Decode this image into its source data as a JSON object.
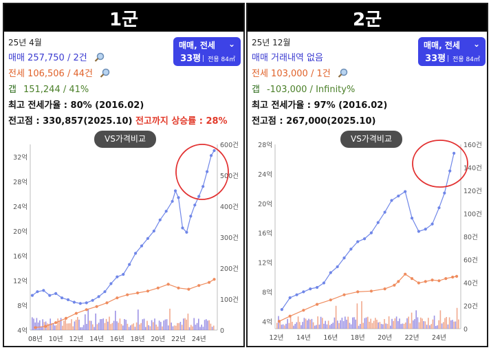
{
  "panels": [
    {
      "title": "1군",
      "period": "25년 4월",
      "trade": "매매 257,750 / 2건",
      "jeonse": "전세 106,506 / 44건",
      "gap_label": "갭",
      "gap_value": "151,244 / 41%",
      "max_ratio": "최고 전세가율 : 80% (2016.02)",
      "peak": "전고점 : 330,857(2025.10)",
      "rise": "전고까지 상승률 : 28%",
      "select_type": "매매, 전세",
      "select_size": "33평",
      "select_area": "전용 84㎡",
      "vs_button": "VS가격비교"
    },
    {
      "title": "2군",
      "period": "25년 12월",
      "trade": "매매 거래내역 없음",
      "jeonse": "전세 103,000 / 1건",
      "gap_label": "갭",
      "gap_value": "-103,000 / Infinity%",
      "max_ratio": "최고 전세가율 : 97% (2016.02)",
      "peak": "전고점 : 267,000(2025.10)",
      "rise": "",
      "select_type": "매매, 전세",
      "select_size": "33평",
      "select_area": "전용 84㎡",
      "vs_button": "VS가격비교"
    }
  ],
  "chart_data": [
    {
      "type": "line",
      "x_tick_labels": [
        "08년",
        "10년",
        "12년",
        "14년",
        "16년",
        "18년",
        "20년",
        "22년",
        "24년"
      ],
      "y_left_tick_labels": [
        "4억",
        "8억",
        "12억",
        "16억",
        "20억",
        "24억",
        "28억",
        "32억"
      ],
      "y_right_tick_labels": [
        "0",
        "100건",
        "200건",
        "300건",
        "400건",
        "500건",
        "600건"
      ],
      "ylim_left": [
        4,
        34
      ],
      "ylim_right": [
        0,
        600
      ],
      "xlim": [
        2007.5,
        2025.8
      ],
      "series": [
        {
          "color": "#6f86e8",
          "x": [
            2007.7,
            2008.2,
            2008.8,
            2009.4,
            2010.0,
            2010.6,
            2011.2,
            2011.8,
            2012.4,
            2013.0,
            2013.6,
            2014.2,
            2014.8,
            2015.4,
            2016.0,
            2016.6,
            2017.2,
            2017.8,
            2018.4,
            2019.0,
            2019.6,
            2020.2,
            2020.8,
            2021.4,
            2021.7,
            2022.0,
            2022.4,
            2022.8,
            2023.2,
            2023.6,
            2024.0,
            2024.4,
            2024.8,
            2025.2,
            2025.5
          ],
          "values": [
            9.6,
            10.2,
            10.4,
            9.6,
            9.9,
            9.2,
            8.9,
            8.5,
            8.3,
            8.4,
            8.8,
            9.4,
            10.2,
            11.5,
            12.6,
            13.0,
            14.6,
            16.4,
            17.6,
            18.8,
            20.0,
            21.8,
            23.2,
            24.8,
            26.5,
            25.4,
            20.5,
            19.8,
            22.4,
            24.2,
            25.6,
            27.2,
            29.6,
            32.2,
            33.0
          ]
        },
        {
          "color": "#ef8c5e",
          "x": [
            2008.0,
            2009.0,
            2010.0,
            2011.0,
            2012.0,
            2013.0,
            2014.0,
            2015.0,
            2016.0,
            2017.0,
            2018.0,
            2019.0,
            2020.0,
            2021.0,
            2022.0,
            2023.0,
            2024.0,
            2025.0,
            2025.5
          ],
          "values": [
            4.4,
            4.6,
            5.2,
            5.9,
            6.7,
            7.3,
            7.8,
            8.4,
            9.2,
            9.7,
            10.0,
            10.3,
            10.8,
            11.4,
            10.8,
            10.6,
            11.2,
            11.7,
            12.2
          ]
        }
      ]
    },
    {
      "type": "line",
      "x_tick_labels": [
        "12년",
        "14년",
        "16년",
        "18년",
        "20년",
        "22년",
        "24년"
      ],
      "y_left_tick_labels": [
        "4억",
        "8억",
        "12억",
        "16억",
        "20억",
        "24억",
        "28억"
      ],
      "y_right_tick_labels": [
        "0",
        "20건",
        "40건",
        "60건",
        "80건",
        "100건",
        "120건",
        "140건",
        "160건"
      ],
      "ylim_left": [
        3,
        28
      ],
      "ylim_right": [
        0,
        160
      ],
      "xlim": [
        2011.9,
        2025.6
      ],
      "series": [
        {
          "color": "#6f86e8",
          "x": [
            2012.4,
            2013.0,
            2013.5,
            2014.0,
            2014.5,
            2015.0,
            2015.5,
            2016.0,
            2016.5,
            2017.0,
            2017.5,
            2018.0,
            2018.5,
            2019.0,
            2019.5,
            2020.0,
            2020.5,
            2021.0,
            2021.5,
            2022.0,
            2022.5,
            2023.0,
            2023.5,
            2024.0,
            2024.4,
            2024.8,
            2025.1
          ],
          "values": [
            5.6,
            7.2,
            7.6,
            8.0,
            8.4,
            8.6,
            9.2,
            10.6,
            11.4,
            12.6,
            13.8,
            14.8,
            15.2,
            16.0,
            17.4,
            18.8,
            20.4,
            21.0,
            21.6,
            18.0,
            16.2,
            16.5,
            17.2,
            19.4,
            21.4,
            24.4,
            26.8
          ]
        },
        {
          "color": "#ef8c5e",
          "x": [
            2012.2,
            2013.0,
            2014.0,
            2015.0,
            2016.0,
            2017.0,
            2018.0,
            2019.0,
            2020.0,
            2020.7,
            2021.0,
            2021.5,
            2022.0,
            2022.5,
            2023.0,
            2023.5,
            2024.0,
            2024.5,
            2025.0,
            2025.3
          ],
          "values": [
            4.0,
            4.7,
            5.5,
            6.3,
            6.9,
            7.6,
            8.0,
            8.1,
            8.4,
            8.9,
            9.4,
            10.4,
            9.8,
            9.2,
            9.4,
            9.6,
            9.5,
            9.8,
            10.0,
            10.1
          ]
        }
      ]
    }
  ]
}
